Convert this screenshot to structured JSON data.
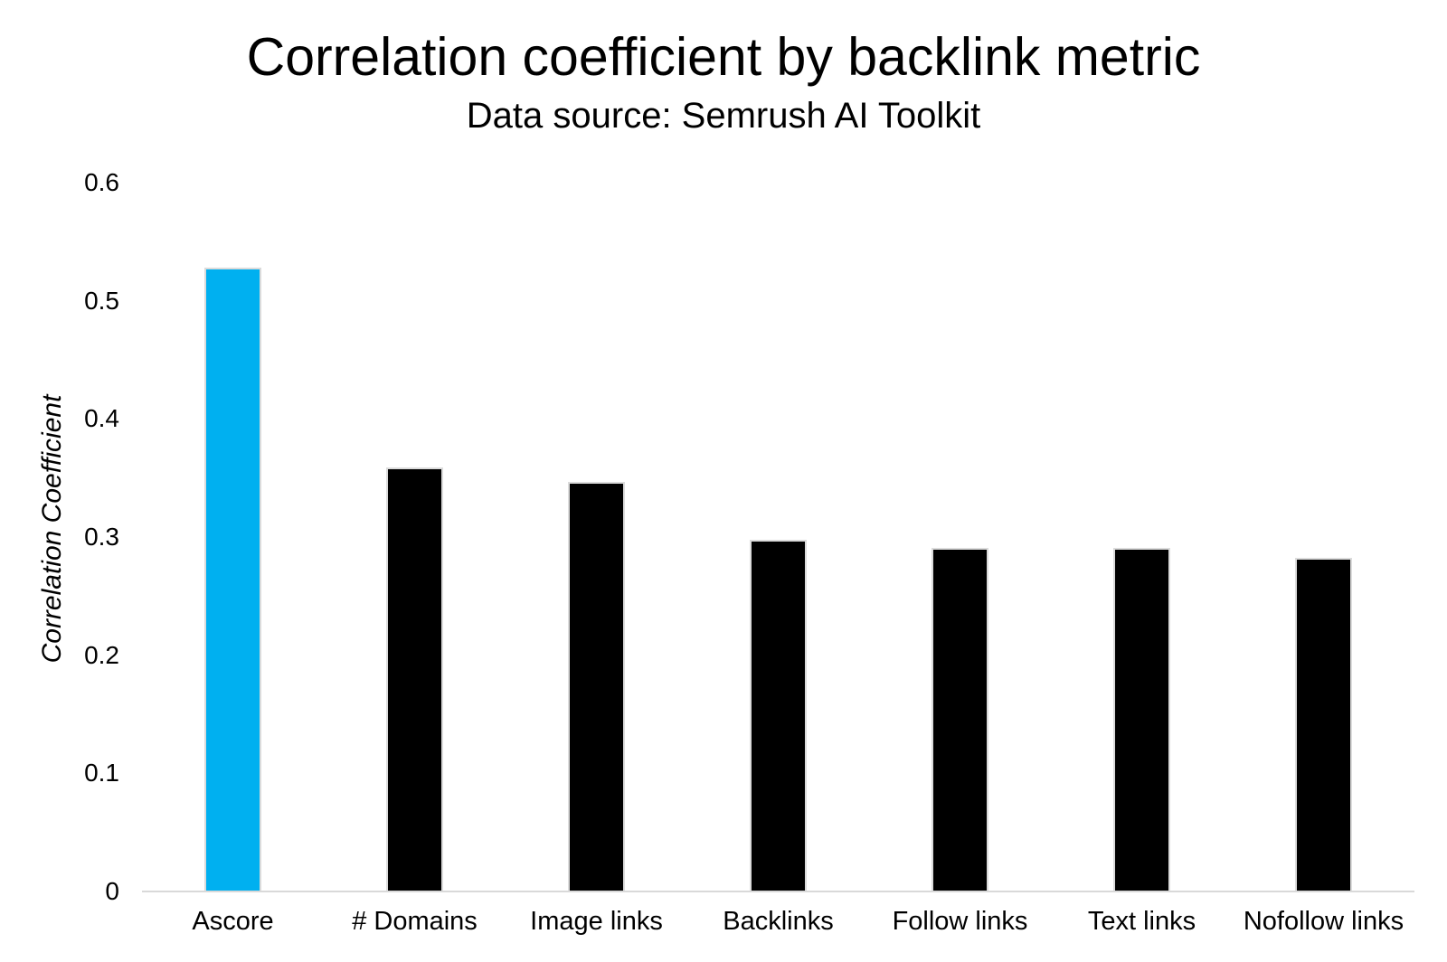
{
  "chart_data": {
    "type": "bar",
    "title": "Correlation coefficient by backlink metric",
    "subtitle": "Data source: Semrush AI Toolkit",
    "ylabel": "Correlation Coefficient",
    "xlabel": "",
    "categories": [
      "Ascore",
      "# Domains",
      "Image links",
      "Backlinks",
      "Follow links",
      "Text links",
      "Nofollow links"
    ],
    "values": [
      0.527,
      0.358,
      0.346,
      0.297,
      0.29,
      0.29,
      0.282
    ],
    "bar_colors": [
      "#00B0F0",
      "#000000",
      "#000000",
      "#000000",
      "#000000",
      "#000000",
      "#000000"
    ],
    "bar_border_color": "#DBDBDB",
    "ylim": [
      0,
      0.6
    ],
    "ytick_values": [
      0,
      0.1,
      0.2,
      0.3,
      0.4,
      0.5,
      0.6
    ],
    "ytick_labels": [
      "0",
      "0.1",
      "0.2",
      "0.3",
      "0.4",
      "0.5",
      "0.6"
    ],
    "grid": false,
    "legend": false,
    "axis_line_color": "#D9D9D9",
    "highlight_color": "#00B0F0",
    "text_color": "#000000",
    "background_color": "#FFFFFF"
  }
}
